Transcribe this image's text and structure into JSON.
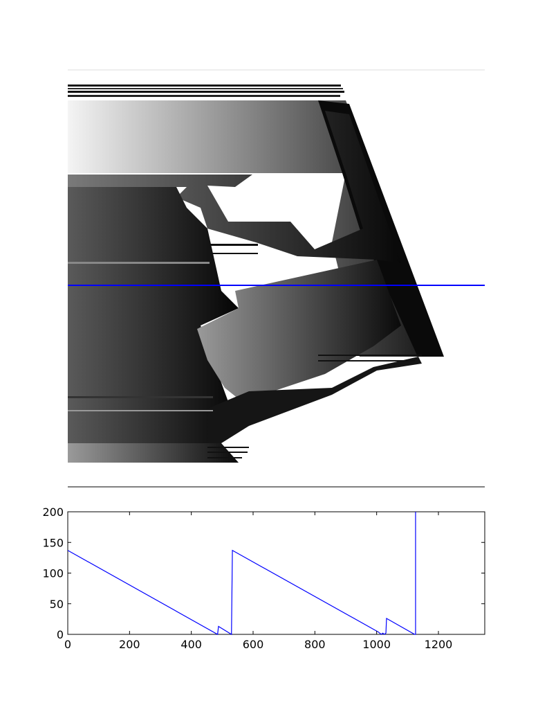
{
  "colors": {
    "line": "#0000ff",
    "axes": "#000000",
    "background": "#ffffff",
    "image_frame": "#dddddd"
  },
  "image_panel": {
    "description_type": "grayscale depth image",
    "has_horizontal_line": true
  },
  "chart_data": {
    "type": "line",
    "title": "",
    "xlabel": "",
    "ylabel": "",
    "xlim": [
      0,
      1350
    ],
    "ylim": [
      0,
      200
    ],
    "xticks": [
      0,
      200,
      400,
      600,
      800,
      1000,
      1200
    ],
    "yticks": [
      0,
      50,
      100,
      150,
      200
    ],
    "grid": false,
    "series": [
      {
        "x": [
          0,
          485,
          488,
          530,
          533,
          1005,
          1015,
          1020,
          1025,
          1030,
          1032,
          1123,
          1126,
          1126
        ],
        "y": [
          137,
          0,
          13,
          0,
          137,
          4,
          0,
          2,
          0,
          2,
          26,
          0,
          0,
          200
        ]
      }
    ]
  }
}
